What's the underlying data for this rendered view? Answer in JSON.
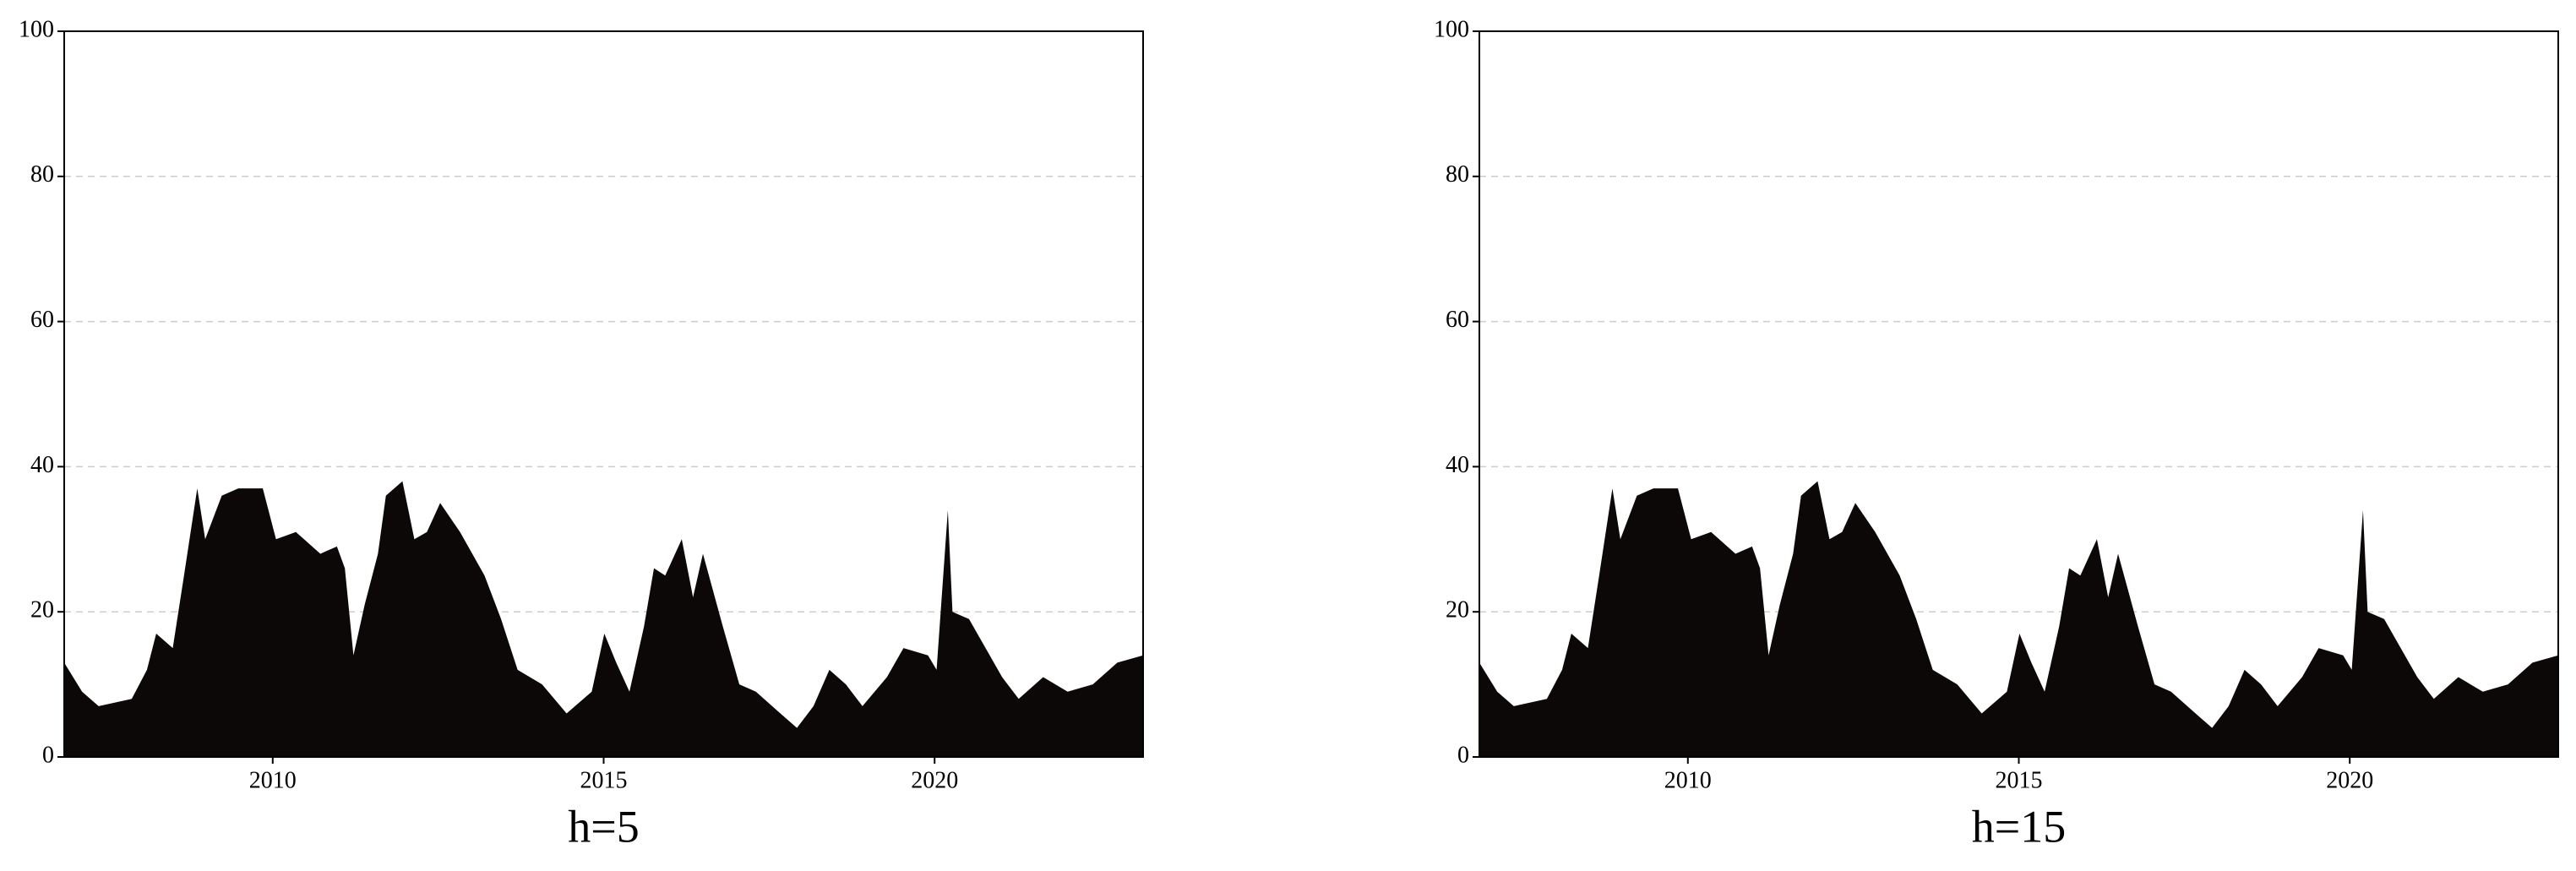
{
  "chart_data": [
    {
      "type": "area",
      "title": "h=5",
      "color": "#0c0808",
      "grid": true,
      "xlim": [
        2006.85,
        2023.15
      ],
      "ylim": [
        0,
        100
      ],
      "xticks": [
        2010,
        2015,
        2020
      ],
      "yticks": [
        0,
        20,
        40,
        60,
        80,
        100
      ],
      "x": [
        2006.85,
        2007.12,
        2007.37,
        2007.87,
        2008.1,
        2008.24,
        2008.49,
        2008.66,
        2008.86,
        2008.98,
        2009.23,
        2009.48,
        2009.85,
        2010.05,
        2010.35,
        2010.72,
        2010.97,
        2011.09,
        2011.22,
        2011.39,
        2011.59,
        2011.71,
        2011.96,
        2012.14,
        2012.33,
        2012.53,
        2012.83,
        2013.2,
        2013.45,
        2013.7,
        2014.07,
        2014.44,
        2014.82,
        2015.01,
        2015.19,
        2015.39,
        2015.61,
        2015.76,
        2015.93,
        2016.18,
        2016.35,
        2016.5,
        2016.8,
        2017.05,
        2017.3,
        2017.67,
        2017.92,
        2018.17,
        2018.41,
        2018.66,
        2018.91,
        2019.28,
        2019.53,
        2019.9,
        2020.03,
        2020.2,
        2020.27,
        2020.52,
        2020.77,
        2021.02,
        2021.27,
        2021.64,
        2022.01,
        2022.39,
        2022.76,
        2023.15
      ],
      "values": [
        13,
        9,
        7,
        8,
        12,
        17,
        15,
        25,
        37,
        30,
        36,
        37,
        37,
        30,
        31,
        28,
        29,
        26,
        14,
        21,
        28,
        36,
        38,
        30,
        31,
        35,
        31,
        25,
        19,
        12,
        10,
        6,
        9,
        17,
        13,
        9,
        18,
        26,
        25,
        30,
        22,
        28,
        18,
        10,
        9,
        6,
        4,
        7,
        12,
        10,
        7,
        11,
        15,
        14,
        12,
        34,
        20,
        19,
        15,
        11,
        8,
        11,
        9,
        10,
        13,
        14
      ]
    },
    {
      "type": "area",
      "title": "h=15",
      "color": "#0c0808",
      "grid": true,
      "xlim": [
        2006.85,
        2023.15
      ],
      "ylim": [
        0,
        100
      ],
      "xticks": [
        2010,
        2015,
        2020
      ],
      "yticks": [
        0,
        20,
        40,
        60,
        80,
        100
      ],
      "x": [
        2006.85,
        2007.12,
        2007.37,
        2007.87,
        2008.1,
        2008.24,
        2008.49,
        2008.66,
        2008.86,
        2008.98,
        2009.23,
        2009.48,
        2009.85,
        2010.05,
        2010.35,
        2010.72,
        2010.97,
        2011.09,
        2011.22,
        2011.39,
        2011.59,
        2011.71,
        2011.96,
        2012.14,
        2012.33,
        2012.53,
        2012.83,
        2013.2,
        2013.45,
        2013.7,
        2014.07,
        2014.44,
        2014.82,
        2015.01,
        2015.19,
        2015.39,
        2015.61,
        2015.76,
        2015.93,
        2016.18,
        2016.35,
        2016.5,
        2016.8,
        2017.05,
        2017.3,
        2017.67,
        2017.92,
        2018.17,
        2018.41,
        2018.66,
        2018.91,
        2019.28,
        2019.53,
        2019.9,
        2020.03,
        2020.2,
        2020.27,
        2020.52,
        2020.77,
        2021.02,
        2021.27,
        2021.64,
        2022.01,
        2022.39,
        2022.76,
        2023.15
      ],
      "values": [
        13,
        9,
        7,
        8,
        12,
        17,
        15,
        25,
        37,
        30,
        36,
        37,
        37,
        30,
        31,
        28,
        29,
        26,
        14,
        21,
        28,
        36,
        38,
        30,
        31,
        35,
        31,
        25,
        19,
        12,
        10,
        6,
        9,
        17,
        13,
        9,
        18,
        26,
        25,
        30,
        22,
        28,
        18,
        10,
        9,
        6,
        4,
        7,
        12,
        10,
        7,
        11,
        15,
        14,
        12,
        34,
        20,
        19,
        15,
        11,
        8,
        11,
        9,
        10,
        13,
        14
      ]
    }
  ]
}
